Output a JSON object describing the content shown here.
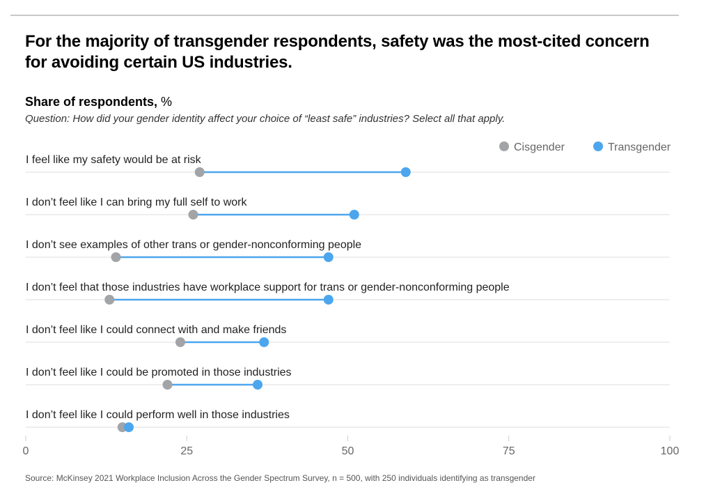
{
  "header": {
    "title": "For the majority of transgender respondents, safety was the most-cited concern for avoiding certain US industries.",
    "subtitle_bold": "Share of respondents,",
    "subtitle_unit": " %",
    "question": "Question: How did your gender identity affect your choice of “least safe” industries? Select all that apply."
  },
  "footer": {
    "source": "Source: McKinsey 2021 Workplace Inclusion Across the Gender Spectrum Survey, n = 500, with 250 individuals identifying as transgender"
  },
  "chart_data": {
    "type": "scatter",
    "subtype": "dumbbell",
    "title": "For the majority of transgender respondents, safety was the most-cited concern for avoiding certain US industries.",
    "xlabel": "Share of respondents, %",
    "ylabel": "",
    "xlim": [
      0,
      100
    ],
    "xticks": [
      0,
      25,
      50,
      75,
      100
    ],
    "grid": false,
    "legend_position": "top-right",
    "colors": {
      "Cisgender": "#a2a4a8",
      "Transgender": "#4ca6ee",
      "connector": "#4ca6ee"
    },
    "categories": [
      "I feel like my safety would be at risk",
      "I don’t feel like I can bring my full self to work",
      "I don’t see examples of other trans or gender-nonconforming people",
      "I don’t feel that those industries have workplace support for trans or gender-nonconforming people",
      "I don’t feel like I could connect with and make friends",
      "I don’t feel like I could be promoted in those industries",
      "I don’t feel like I could perform well in those industries"
    ],
    "series": [
      {
        "name": "Cisgender",
        "values": [
          27,
          26,
          14,
          13,
          24,
          22,
          15
        ]
      },
      {
        "name": "Transgender",
        "values": [
          59,
          51,
          47,
          47,
          37,
          36,
          16
        ]
      }
    ]
  }
}
